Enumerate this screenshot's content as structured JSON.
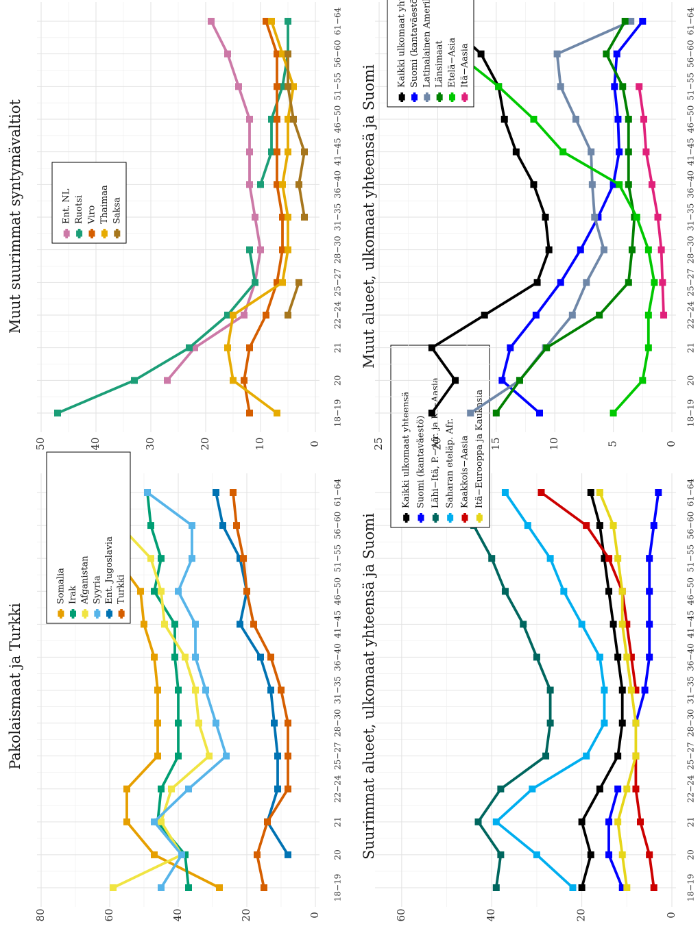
{
  "age_groups": [
    "18−19",
    "20",
    "21",
    "22−24",
    "25−27",
    "28−30",
    "31−35",
    "36−40",
    "41−45",
    "46−50",
    "51−55",
    "56−60",
    "61−64"
  ],
  "chart_data": [
    {
      "type": "line",
      "title": "Pakolaismaat ja Turkki",
      "ylim": [
        0,
        80
      ],
      "yticks": [
        0,
        20,
        40,
        60,
        80
      ],
      "legend_position": "top-center",
      "series": [
        {
          "name": "Somalia",
          "color": "#E69F00",
          "values": [
            28,
            47,
            55,
            55,
            46,
            46,
            46,
            47,
            50,
            51,
            58,
            58,
            60
          ]
        },
        {
          "name": "Irak",
          "color": "#009E73",
          "values": [
            37,
            38,
            46,
            45,
            40,
            40,
            40,
            41,
            41,
            47,
            45,
            48,
            49
          ]
        },
        {
          "name": "Afganistan",
          "color": "#F0E442",
          "values": [
            59,
            39,
            45,
            42,
            31,
            34,
            35,
            38,
            44,
            45,
            48,
            57,
            63
          ]
        },
        {
          "name": "Syyria",
          "color": "#56B4E9",
          "values": [
            45,
            39,
            47,
            37,
            26,
            29,
            32,
            35,
            35,
            40,
            36,
            36,
            49
          ]
        },
        {
          "name": "Ent. Jugoslavia",
          "color": "#0072B2",
          "values": [
            null,
            8,
            14,
            11,
            11,
            12,
            13,
            16,
            22,
            20,
            22,
            27,
            29
          ]
        },
        {
          "name": "Turkki",
          "color": "#D55E00",
          "values": [
            15,
            17,
            14,
            8,
            8,
            8,
            10,
            13,
            18,
            20,
            21,
            23,
            24
          ]
        }
      ]
    },
    {
      "type": "line",
      "title": "Muut suurimmat syntymävaltiot",
      "ylim": [
        0,
        50
      ],
      "yticks": [
        0,
        10,
        20,
        30,
        40,
        50
      ],
      "legend_position": "top-center",
      "series": [
        {
          "name": "Ent. NL",
          "color": "#CC79A7",
          "values": [
            null,
            27,
            22,
            13,
            11,
            10,
            11,
            12,
            12,
            12,
            14,
            16,
            19
          ]
        },
        {
          "name": "Ruotsi",
          "color": "#1B9E77",
          "values": [
            47,
            33,
            23,
            16,
            11,
            12,
            null,
            10,
            8,
            8,
            6,
            5,
            5
          ]
        },
        {
          "name": "Viro",
          "color": "#D55E00",
          "values": [
            12,
            13,
            12,
            9,
            7,
            6,
            6,
            7,
            7,
            7,
            7,
            7,
            9
          ]
        },
        {
          "name": "Thaimaa",
          "color": "#E6AB02",
          "values": [
            7,
            15,
            16,
            15,
            6,
            5,
            5,
            6,
            5,
            5,
            4,
            6,
            8
          ]
        },
        {
          "name": "Saksa",
          "color": "#A6761D",
          "values": [
            null,
            null,
            null,
            5,
            3,
            null,
            2,
            3,
            2,
            4,
            5,
            5,
            null
          ]
        }
      ]
    },
    {
      "type": "line",
      "title": "Suurimmat alueet, ulkomaat yhteensä ja Suomi",
      "ylim": [
        0,
        65
      ],
      "yticks": [
        0,
        20,
        40,
        60
      ],
      "legend_position": "top-center",
      "series": [
        {
          "name": "Kaikki ulkomaat yhteensä",
          "color": "#000000",
          "values": [
            20,
            18,
            20,
            16,
            12,
            11,
            11,
            12,
            13,
            14,
            15,
            16,
            18
          ]
        },
        {
          "name": "Suomi (kantaväestö)",
          "color": "#0000FF",
          "values": [
            11,
            14,
            14,
            12,
            null,
            8,
            6,
            5,
            5,
            5,
            5,
            4,
            3
          ]
        },
        {
          "name": "Lähi−Itä, P.−Afr. ja K.−Aasia",
          "color": "#00665E",
          "values": [
            39,
            38,
            43,
            38,
            28,
            27,
            27,
            30,
            33,
            37,
            40,
            44,
            49
          ]
        },
        {
          "name": "Saharan eteläp. Afr.",
          "color": "#00AEEF",
          "values": [
            22,
            30,
            39,
            31,
            19,
            15,
            15,
            16,
            20,
            24,
            27,
            32,
            37
          ]
        },
        {
          "name": "Kaakkois−Aasia",
          "color": "#CC0000",
          "values": [
            4,
            5,
            7,
            8,
            8,
            null,
            8,
            9,
            10,
            11,
            14,
            19,
            29
          ]
        },
        {
          "name": "Itä−Eurooppa ja Kaukasia",
          "color": "#E6D619",
          "values": [
            10,
            11,
            12,
            10,
            8,
            8,
            9,
            10,
            11,
            11,
            12,
            13,
            16
          ]
        }
      ]
    },
    {
      "type": "line",
      "title": "Muut alueet, ulkomaat yhteensä ja Suomi",
      "ylim": [
        0,
        25
      ],
      "yticks": [
        0,
        5,
        10,
        15,
        20,
        25
      ],
      "legend_position": "top-center",
      "series": [
        {
          "name": "Kaikki ulkomaat yhteensä",
          "color": "#000000",
          "values": [
            20.5,
            18.5,
            20.5,
            16,
            11.5,
            10.5,
            10.8,
            11.8,
            13.3,
            14.3,
            14.8,
            16.3,
            19.3
          ]
        },
        {
          "name": "Suomi (kantaväestö)",
          "color": "#0000FF",
          "values": [
            11.3,
            14.5,
            13.8,
            11.6,
            9.5,
            7.8,
            6.3,
            5,
            4.5,
            4.6,
            4.9,
            4.7,
            2.5
          ]
        },
        {
          "name": "Latinalainen Amerikka",
          "color": "#6F87A8",
          "values": [
            17.2,
            13,
            10.8,
            8.5,
            7.3,
            5.8,
            6.6,
            6.8,
            6.9,
            8.2,
            9.5,
            9.8,
            3.5
          ]
        },
        {
          "name": "Länsimaat",
          "color": "#008000",
          "values": [
            15,
            13,
            10.7,
            6.2,
            3.7,
            3.4,
            3.2,
            3.7,
            3.7,
            3.7,
            4.2,
            5.6,
            4
          ]
        },
        {
          "name": "Etelä−Asia",
          "color": "#00C800",
          "values": [
            5,
            2.5,
            2,
            2,
            1.5,
            2,
            3,
            4.5,
            9.3,
            11.8,
            14.8,
            18.3,
            20.7
          ]
        },
        {
          "name": "Itä−Aasia",
          "color": "#E0217A",
          "values": [
            null,
            null,
            null,
            0.7,
            0.8,
            0.9,
            1.2,
            1.7,
            2.2,
            2.4,
            2.8,
            null,
            null
          ]
        }
      ]
    }
  ]
}
